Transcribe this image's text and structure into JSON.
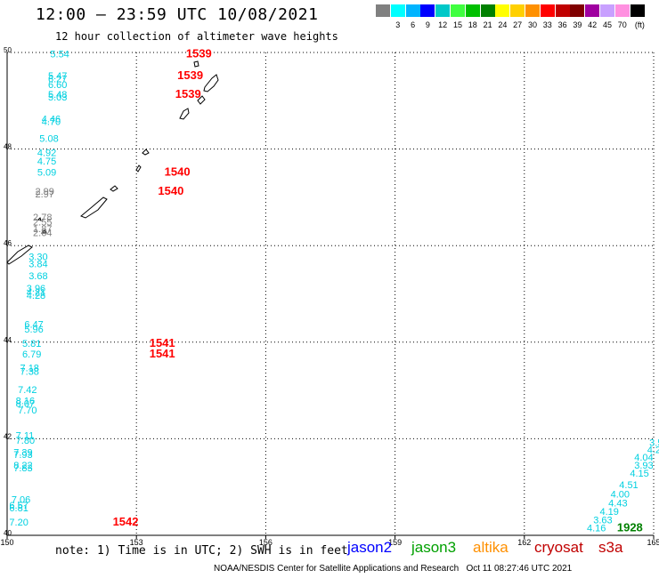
{
  "title": "12:00 – 23:59 UTC 10/08/2021",
  "subtitle": "12 hour collection of altimeter wave heights",
  "legend": {
    "unit": "(ft)",
    "bins": [
      {
        "label": "",
        "color": "#808080"
      },
      {
        "label": "3",
        "color": "#00ffff"
      },
      {
        "label": "6",
        "color": "#00b4ff"
      },
      {
        "label": "9",
        "color": "#0000ff"
      },
      {
        "label": "12",
        "color": "#00c8c8"
      },
      {
        "label": "15",
        "color": "#40ff40"
      },
      {
        "label": "18",
        "color": "#00c000"
      },
      {
        "label": "21",
        "color": "#008000"
      },
      {
        "label": "24",
        "color": "#ffff00"
      },
      {
        "label": "27",
        "color": "#ffd000"
      },
      {
        "label": "30",
        "color": "#ff9000"
      },
      {
        "label": "33",
        "color": "#ff0000"
      },
      {
        "label": "36",
        "color": "#c00000"
      },
      {
        "label": "39",
        "color": "#800000"
      },
      {
        "label": "42",
        "color": "#a000a0"
      },
      {
        "label": "45",
        "color": "#c8a0ff"
      },
      {
        "label": "70",
        "color": "#ff90e0"
      },
      {
        "label": "",
        "color": "#000000"
      }
    ]
  },
  "axes": {
    "lon_ticks": [
      "150",
      "153",
      "156",
      "159",
      "162",
      "165"
    ],
    "lat_ticks": [
      "50",
      "48",
      "46",
      "44",
      "42",
      "40"
    ],
    "lon_range": [
      150,
      165
    ],
    "lat_range": [
      40,
      50
    ]
  },
  "wave_labels": [
    {
      "text": "5.54",
      "lon": 151.0,
      "lat": 49.9,
      "color": "#00d0e0"
    },
    {
      "text": "5.47",
      "lon": 150.95,
      "lat": 49.45,
      "color": "#00d0e0"
    },
    {
      "text": "6.27",
      "lon": 150.95,
      "lat": 49.38,
      "color": "#00d0e0"
    },
    {
      "text": "6.60",
      "lon": 150.95,
      "lat": 49.26,
      "color": "#00d0e0"
    },
    {
      "text": "5.48",
      "lon": 150.95,
      "lat": 49.06,
      "color": "#00d0e0"
    },
    {
      "text": "5.03",
      "lon": 150.95,
      "lat": 49.01,
      "color": "#00d0e0"
    },
    {
      "text": "4.46",
      "lon": 150.8,
      "lat": 48.55,
      "color": "#00d0e0"
    },
    {
      "text": "4.70",
      "lon": 150.8,
      "lat": 48.5,
      "color": "#00d0e0"
    },
    {
      "text": "5.08",
      "lon": 150.75,
      "lat": 48.15,
      "color": "#00d0e0"
    },
    {
      "text": "4.92",
      "lon": 150.7,
      "lat": 47.85,
      "color": "#00d0e0"
    },
    {
      "text": "4.75",
      "lon": 150.7,
      "lat": 47.68,
      "color": "#00d0e0"
    },
    {
      "text": "5.09",
      "lon": 150.7,
      "lat": 47.45,
      "color": "#00d0e0"
    },
    {
      "text": "2.99",
      "lon": 150.65,
      "lat": 47.05,
      "color": "#808080"
    },
    {
      "text": "2.97",
      "lon": 150.65,
      "lat": 47.0,
      "color": "#808080"
    },
    {
      "text": "2.78",
      "lon": 150.6,
      "lat": 46.52,
      "color": "#808080"
    },
    {
      "text": "2.55",
      "lon": 150.6,
      "lat": 46.42,
      "color": "#808080"
    },
    {
      "text": "1.87",
      "lon": 150.6,
      "lat": 46.28,
      "color": "#808080"
    },
    {
      "text": "2.64",
      "lon": 150.6,
      "lat": 46.2,
      "color": "#808080"
    },
    {
      "text": "3.30",
      "lon": 150.5,
      "lat": 45.7,
      "color": "#00d0e0"
    },
    {
      "text": "3.84",
      "lon": 150.5,
      "lat": 45.55,
      "color": "#00d0e0"
    },
    {
      "text": "3.68",
      "lon": 150.5,
      "lat": 45.3,
      "color": "#00d0e0"
    },
    {
      "text": "3.96",
      "lon": 150.45,
      "lat": 45.05,
      "color": "#00d0e0"
    },
    {
      "text": "4.21",
      "lon": 150.45,
      "lat": 44.96,
      "color": "#00d0e0"
    },
    {
      "text": "4.28",
      "lon": 150.45,
      "lat": 44.9,
      "color": "#00d0e0"
    },
    {
      "text": "6.47",
      "lon": 150.4,
      "lat": 44.3,
      "color": "#00d0e0"
    },
    {
      "text": "5.96",
      "lon": 150.4,
      "lat": 44.2,
      "color": "#00d0e0"
    },
    {
      "text": "5.81",
      "lon": 150.35,
      "lat": 43.9,
      "color": "#00d0e0"
    },
    {
      "text": "6.79",
      "lon": 150.35,
      "lat": 43.68,
      "color": "#00d0e0"
    },
    {
      "text": "7.18",
      "lon": 150.3,
      "lat": 43.4,
      "color": "#00d0e0"
    },
    {
      "text": "7.38",
      "lon": 150.3,
      "lat": 43.32,
      "color": "#00d0e0"
    },
    {
      "text": "7.42",
      "lon": 150.25,
      "lat": 42.95,
      "color": "#00d0e0"
    },
    {
      "text": "8.16",
      "lon": 150.2,
      "lat": 42.72,
      "color": "#00d0e0"
    },
    {
      "text": "8.07",
      "lon": 150.2,
      "lat": 42.66,
      "color": "#00d0e0"
    },
    {
      "text": "7.70",
      "lon": 150.25,
      "lat": 42.52,
      "color": "#00d0e0"
    },
    {
      "text": "7.11",
      "lon": 150.2,
      "lat": 42.0,
      "color": "#00d0e0"
    },
    {
      "text": "7.80",
      "lon": 150.2,
      "lat": 41.9,
      "color": "#00d0e0"
    },
    {
      "text": "7.39",
      "lon": 150.15,
      "lat": 41.65,
      "color": "#00d0e0"
    },
    {
      "text": "7.93",
      "lon": 150.15,
      "lat": 41.6,
      "color": "#00d0e0"
    },
    {
      "text": "8.22",
      "lon": 150.15,
      "lat": 41.38,
      "color": "#00d0e0"
    },
    {
      "text": "7.83",
      "lon": 150.15,
      "lat": 41.33,
      "color": "#00d0e0"
    },
    {
      "text": "7.06",
      "lon": 150.1,
      "lat": 40.67,
      "color": "#00d0e0"
    },
    {
      "text": "6.57",
      "lon": 150.05,
      "lat": 40.55,
      "color": "#00d0e0"
    },
    {
      "text": "6.81",
      "lon": 150.05,
      "lat": 40.5,
      "color": "#00d0e0"
    },
    {
      "text": "7.20",
      "lon": 150.05,
      "lat": 40.2,
      "color": "#00d0e0"
    },
    {
      "text": "3.5",
      "lon": 164.9,
      "lat": 41.85,
      "color": "#00d0e0"
    },
    {
      "text": "4.2",
      "lon": 164.85,
      "lat": 41.7,
      "color": "#00d0e0"
    },
    {
      "text": "4.04",
      "lon": 164.55,
      "lat": 41.55,
      "color": "#00d0e0"
    },
    {
      "text": "3.93",
      "lon": 164.55,
      "lat": 41.38,
      "color": "#00d0e0"
    },
    {
      "text": "4.15",
      "lon": 164.45,
      "lat": 41.22,
      "color": "#00d0e0"
    },
    {
      "text": "4.51",
      "lon": 164.2,
      "lat": 40.98,
      "color": "#00d0e0"
    },
    {
      "text": "4.00",
      "lon": 164.0,
      "lat": 40.78,
      "color": "#00d0e0"
    },
    {
      "text": "4.43",
      "lon": 163.95,
      "lat": 40.6,
      "color": "#00d0e0"
    },
    {
      "text": "4.19",
      "lon": 163.75,
      "lat": 40.42,
      "color": "#00d0e0"
    },
    {
      "text": "3.63",
      "lon": 163.6,
      "lat": 40.25,
      "color": "#00d0e0"
    },
    {
      "text": "4.16",
      "lon": 163.45,
      "lat": 40.08,
      "color": "#00d0e0"
    }
  ],
  "time_labels": [
    {
      "text": "1539",
      "lon": 154.15,
      "lat": 49.9,
      "color": "#ff0000"
    },
    {
      "text": "1539",
      "lon": 153.95,
      "lat": 49.45,
      "color": "#ff0000"
    },
    {
      "text": "1539",
      "lon": 153.9,
      "lat": 49.06,
      "color": "#ff0000"
    },
    {
      "text": "1540",
      "lon": 153.65,
      "lat": 47.45,
      "color": "#ff0000"
    },
    {
      "text": "1540",
      "lon": 153.5,
      "lat": 47.05,
      "color": "#ff0000"
    },
    {
      "text": "1541",
      "lon": 153.3,
      "lat": 43.9,
      "color": "#ff0000"
    },
    {
      "text": "1541",
      "lon": 153.3,
      "lat": 43.68,
      "color": "#ff0000"
    },
    {
      "text": "1542",
      "lon": 152.45,
      "lat": 40.2,
      "color": "#ff0000"
    },
    {
      "text": "1928",
      "lon": 164.15,
      "lat": 40.08,
      "color": "#008000"
    }
  ],
  "notes": {
    "units_note": "note: 1) Time is in UTC; 2) SWH is in feet",
    "credit": "NOAA/NESDIS Center for Satellite Applications and Research   Oct 11 08:27:46 UTC 2021"
  },
  "satellites": [
    {
      "name": "jason2",
      "color": "#0000ff"
    },
    {
      "name": "jason3",
      "color": "#00a000"
    },
    {
      "name": "altika",
      "color": "#ff9000"
    },
    {
      "name": "cryosat",
      "color": "#c00000"
    },
    {
      "name": "s3a",
      "color": "#c00000"
    }
  ]
}
